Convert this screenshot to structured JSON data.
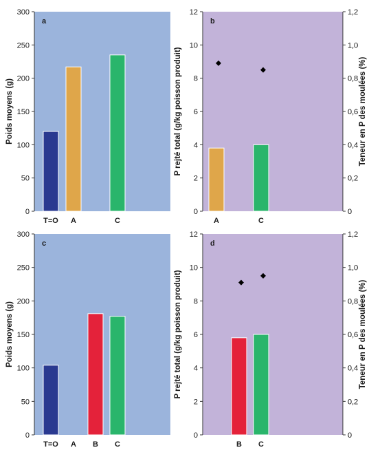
{
  "colors": {
    "blue_bg": "#9bb4dc",
    "purple_bg": "#c2b3d9",
    "navy": "#2a3990",
    "orange": "#dfa64a",
    "green": "#2ab56b",
    "red": "#e4223a",
    "marker": "#000000"
  },
  "chart_data": [
    {
      "type": "bar",
      "panel_letter": "a",
      "ylabel": "Poids moyens (g)",
      "ylim": [
        0,
        300
      ],
      "yticks": [
        "0",
        "50",
        "100",
        "150",
        "200",
        "250",
        "300"
      ],
      "categories": [
        "T=O",
        "A",
        "C"
      ],
      "values": [
        120,
        217,
        235
      ],
      "bar_colors": [
        "navy",
        "orange",
        "green"
      ]
    },
    {
      "type": "bar",
      "panel_letter": "b",
      "ylabel": "P rejté total (g/kg poisson produit)",
      "ylim": [
        0,
        12
      ],
      "yticks": [
        "0",
        "2",
        "4",
        "6",
        "8",
        "10",
        "12"
      ],
      "y2label": "Teneur en P des moulées (%)",
      "y2lim": [
        0,
        1.2
      ],
      "y2ticks": [
        "0",
        "0,2",
        "0,4",
        "0,6",
        "0,8",
        "1,0",
        "1,2"
      ],
      "categories": [
        "A",
        "C"
      ],
      "values": [
        3.8,
        4.0
      ],
      "bar_colors": [
        "orange",
        "green"
      ],
      "markers_y2": [
        0.89,
        0.85
      ]
    },
    {
      "type": "bar",
      "panel_letter": "c",
      "ylabel": "Poids moyens (g)",
      "ylim": [
        0,
        300
      ],
      "yticks": [
        "0",
        "50",
        "100",
        "150",
        "200",
        "250",
        "300"
      ],
      "categories": [
        "T=O",
        "A",
        "B",
        "C"
      ],
      "values": [
        104,
        null,
        181,
        177
      ],
      "bar_colors": [
        "navy",
        null,
        "red",
        "green"
      ]
    },
    {
      "type": "bar",
      "panel_letter": "d",
      "ylabel": "P rejté total (g/kg poisson produit)",
      "ylim": [
        0,
        12
      ],
      "yticks": [
        "0",
        "2",
        "4",
        "6",
        "8",
        "10",
        "12"
      ],
      "y2label": "Teneur en P des moulées (%)",
      "y2lim": [
        0,
        1.2
      ],
      "y2ticks": [
        "0",
        "0,2",
        "0,4",
        "0,6",
        "0,8",
        "1,0",
        "1,2"
      ],
      "categories": [
        "B",
        "C"
      ],
      "values": [
        5.8,
        6.0
      ],
      "bar_colors": [
        "red",
        "green"
      ],
      "markers_y2": [
        0.91,
        0.95
      ]
    }
  ]
}
